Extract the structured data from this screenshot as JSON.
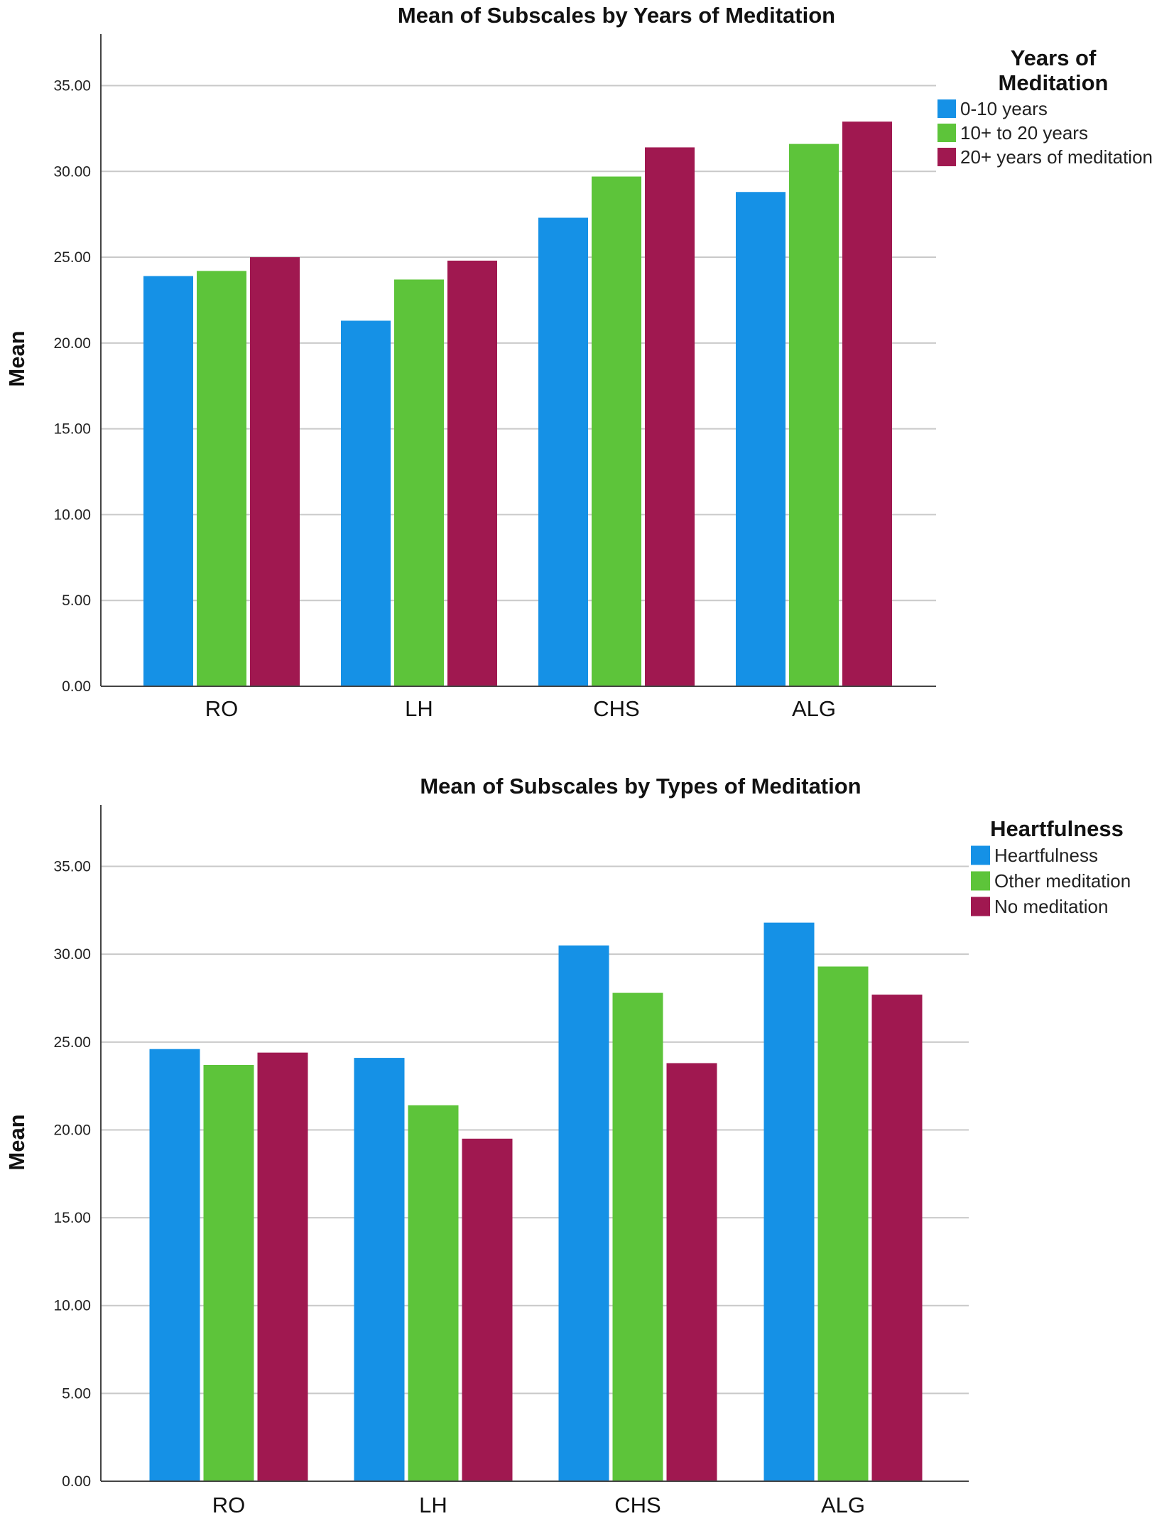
{
  "chart_data": [
    {
      "type": "bar",
      "title": "Mean of Subscales by Years of Meditation",
      "xlabel": "",
      "ylabel": "Mean",
      "ylim": [
        0,
        38
      ],
      "yticks": [
        0,
        5,
        10,
        15,
        20,
        25,
        30,
        35
      ],
      "ytick_labels": [
        "0.00",
        "5.00",
        "10.00",
        "15.00",
        "20.00",
        "25.00",
        "30.00",
        "35.00"
      ],
      "grid": true,
      "legend_title": "Years of Meditation",
      "legend_position": "top-right",
      "categories": [
        "RO",
        "LH",
        "CHS",
        "ALG"
      ],
      "series": [
        {
          "name": "0-10 years",
          "color": "#1591E6",
          "values": [
            23.9,
            21.3,
            27.3,
            28.8
          ]
        },
        {
          "name": "10+ to 20 years",
          "color": "#5DC43A",
          "values": [
            24.2,
            23.7,
            29.7,
            31.6
          ]
        },
        {
          "name": "20+ years of meditation",
          "color": "#A01850",
          "values": [
            25.0,
            24.8,
            31.4,
            32.9
          ]
        }
      ]
    },
    {
      "type": "bar",
      "title": "Mean of Subscales by Types of Meditation",
      "xlabel": "",
      "ylabel": "Mean",
      "ylim": [
        0,
        38.5
      ],
      "yticks": [
        0,
        5,
        10,
        15,
        20,
        25,
        30,
        35
      ],
      "ytick_labels": [
        "0.00",
        "5.00",
        "10.00",
        "15.00",
        "20.00",
        "25.00",
        "30.00",
        "35.00"
      ],
      "grid": true,
      "legend_title": "Heartfulness",
      "legend_position": "top-right",
      "categories": [
        "RO",
        "LH",
        "CHS",
        "ALG"
      ],
      "series": [
        {
          "name": "Heartfulness",
          "color": "#1591E6",
          "values": [
            24.6,
            24.1,
            30.5,
            31.8
          ]
        },
        {
          "name": "Other meditation",
          "color": "#5DC43A",
          "values": [
            23.7,
            21.4,
            27.8,
            29.3
          ]
        },
        {
          "name": "No meditation",
          "color": "#A01850",
          "values": [
            24.4,
            19.5,
            23.8,
            27.7
          ]
        }
      ]
    }
  ]
}
